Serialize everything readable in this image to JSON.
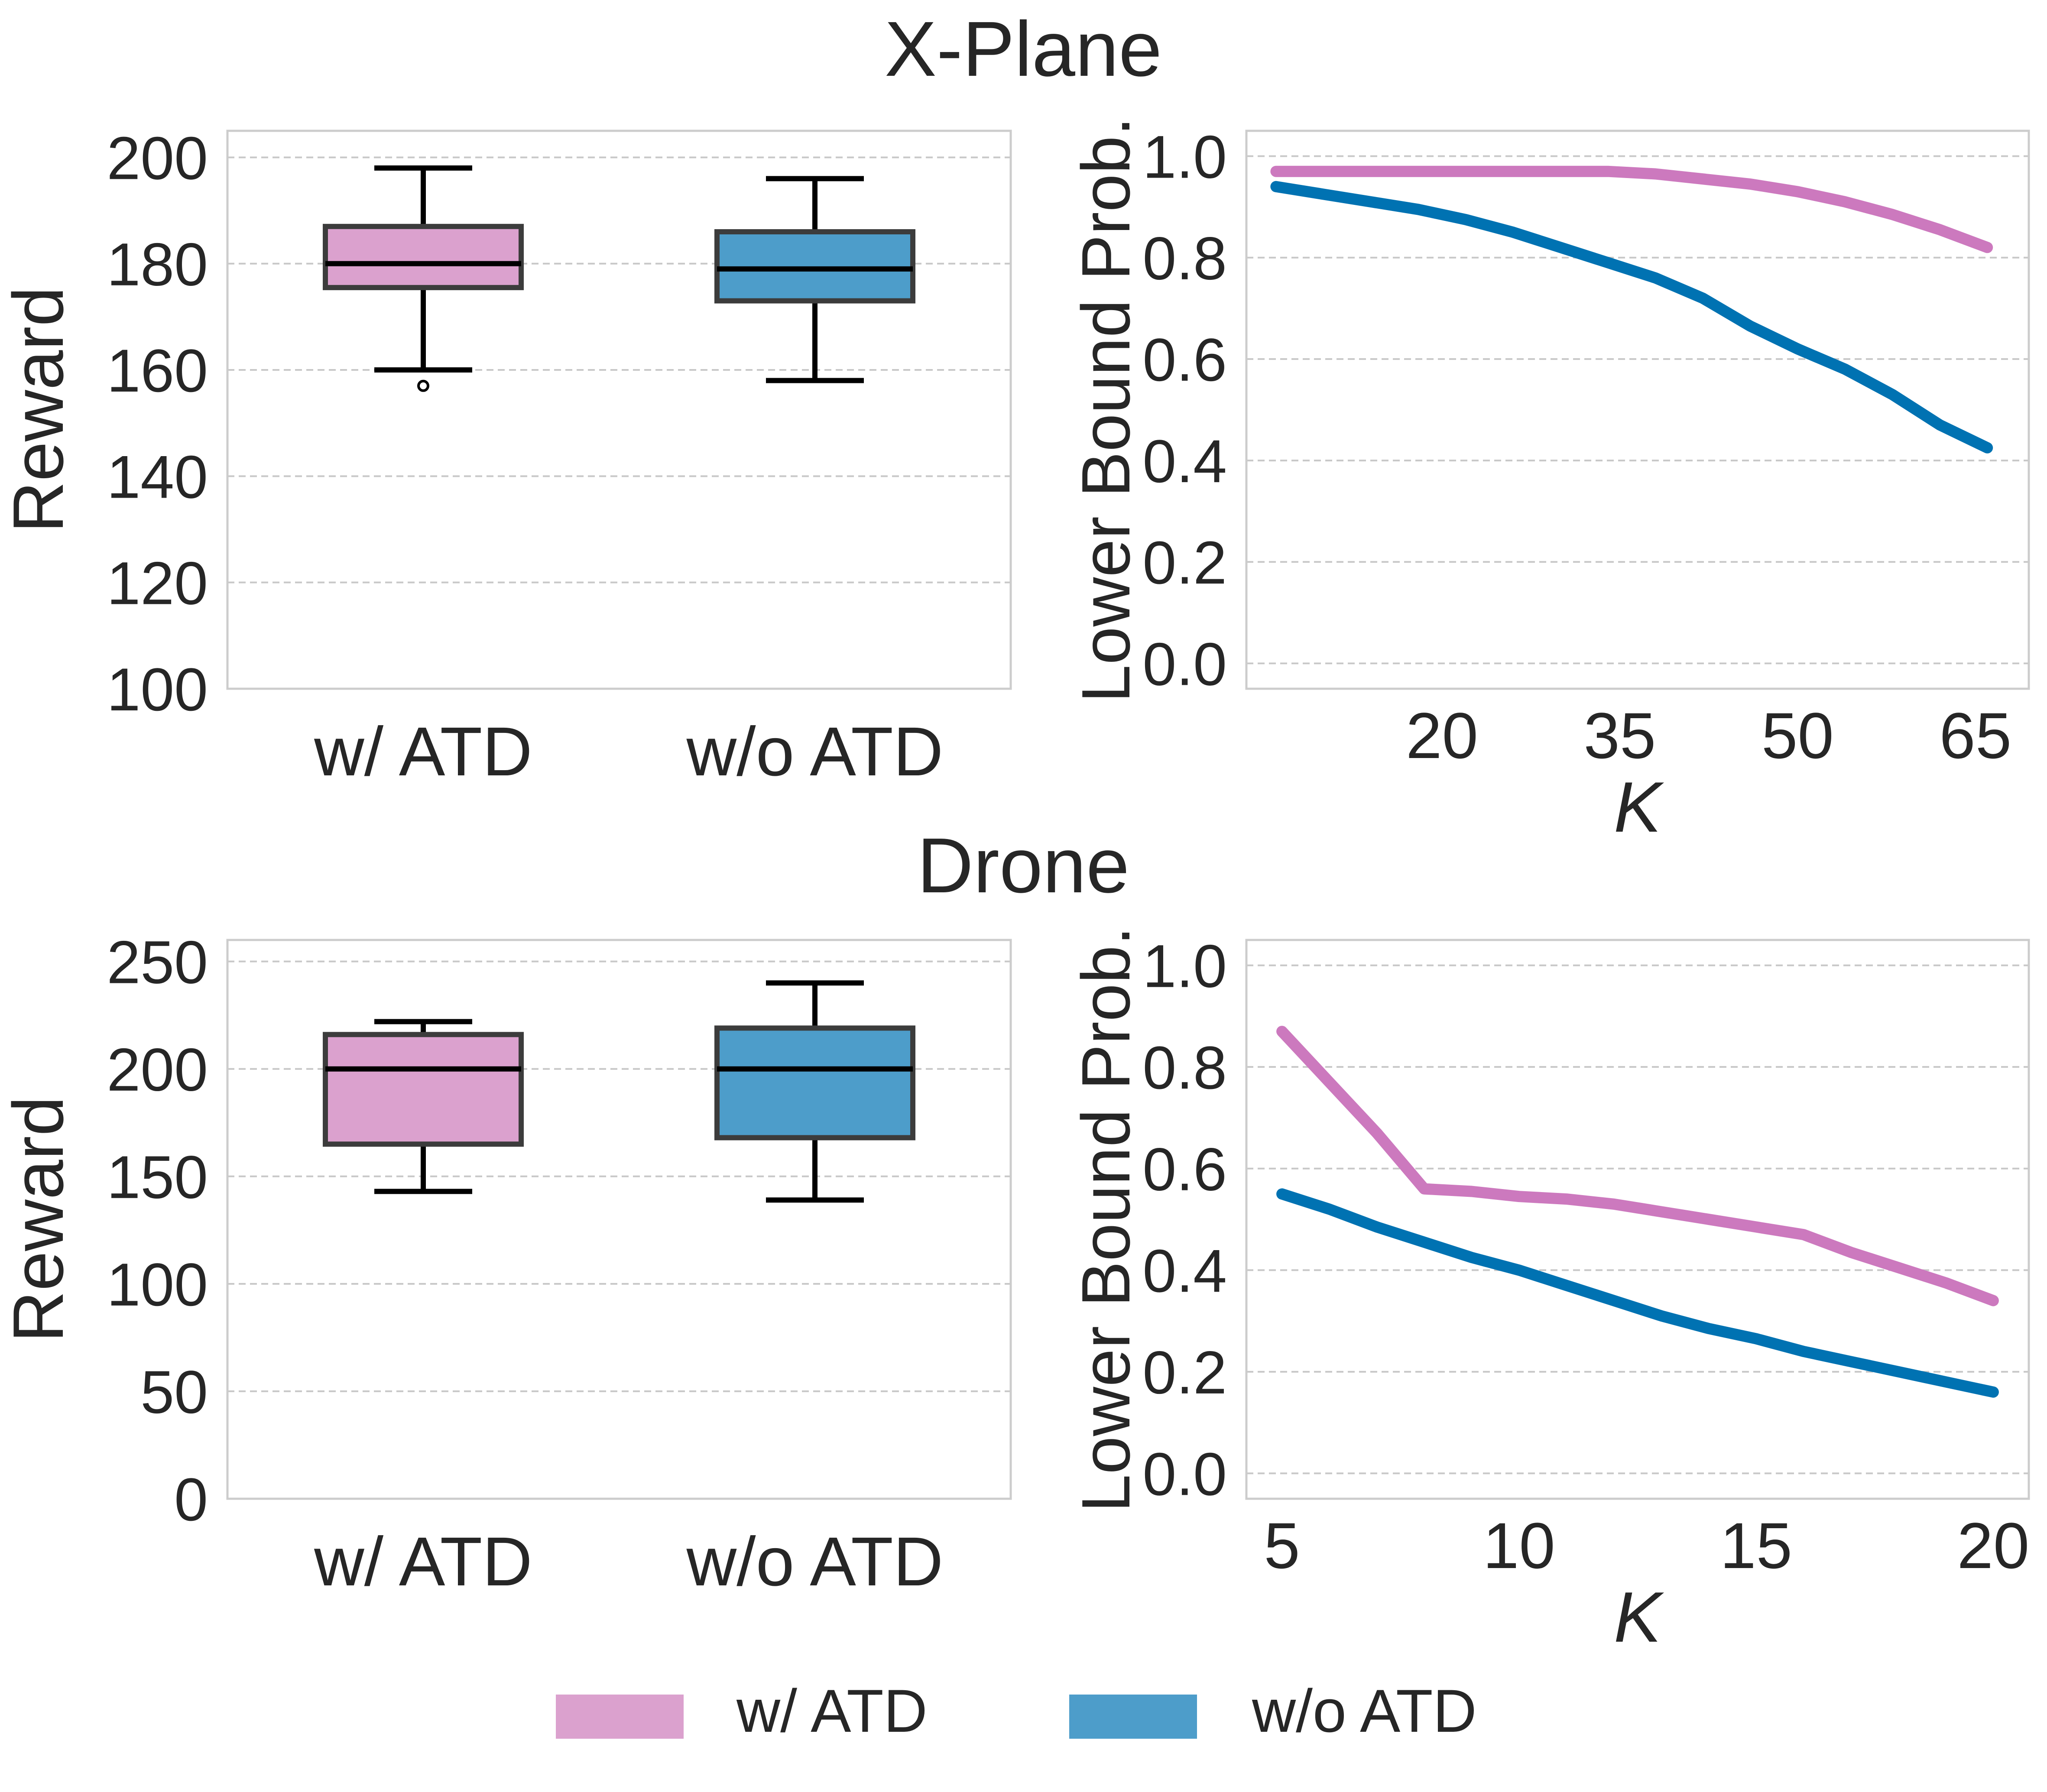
{
  "colors": {
    "w_atd_box": "#dba1ce",
    "wo_atd_box": "#4d9dca",
    "w_atd_line": "#cc79be",
    "wo_atd_line": "#0072b2",
    "grid": "#c8c8c8",
    "frame": "#cccccc",
    "text": "#262626"
  },
  "legend": {
    "items": [
      {
        "label": "w/ ATD",
        "color": "#dba1ce"
      },
      {
        "label": "w/o ATD",
        "color": "#4d9dca"
      }
    ]
  },
  "chart_data": [
    {
      "id": "xplane-reward",
      "type": "box",
      "title": "X-Plane",
      "xlabel": "",
      "ylabel": "Reward",
      "ylim": [
        100,
        205
      ],
      "yticks": [
        100,
        120,
        140,
        160,
        180,
        200
      ],
      "categories": [
        "w/ ATD",
        "w/o ATD"
      ],
      "boxes": [
        {
          "name": "w/ ATD",
          "whisker_low": 160,
          "q1": 175.5,
          "median": 180,
          "q3": 187,
          "whisker_high": 198,
          "outliers": [
            157
          ]
        },
        {
          "name": "w/o ATD",
          "whisker_low": 158,
          "q1": 173,
          "median": 179,
          "q3": 186,
          "whisker_high": 196,
          "outliers": []
        }
      ]
    },
    {
      "id": "xplane-prob",
      "type": "line",
      "xlabel": "K",
      "ylabel": "Lower Bound Prob.",
      "xlim": [
        3.5,
        69.5
      ],
      "ylim": [
        -0.05,
        1.05
      ],
      "xticks": [
        20,
        35,
        50,
        65
      ],
      "yticks": [
        0.0,
        0.2,
        0.4,
        0.6,
        0.8,
        1.0
      ],
      "series": [
        {
          "name": "w/ ATD",
          "x": [
            6,
            10,
            14,
            18,
            22,
            26,
            30,
            34,
            38,
            42,
            46,
            50,
            54,
            58,
            62,
            66
          ],
          "y": [
            0.97,
            0.97,
            0.97,
            0.97,
            0.97,
            0.97,
            0.97,
            0.97,
            0.965,
            0.955,
            0.945,
            0.93,
            0.91,
            0.885,
            0.855,
            0.82
          ]
        },
        {
          "name": "w/o ATD",
          "x": [
            6,
            10,
            14,
            18,
            22,
            26,
            30,
            34,
            38,
            42,
            46,
            50,
            54,
            58,
            62,
            66
          ],
          "y": [
            0.94,
            0.925,
            0.91,
            0.895,
            0.875,
            0.85,
            0.82,
            0.79,
            0.76,
            0.72,
            0.665,
            0.62,
            0.58,
            0.53,
            0.47,
            0.425
          ]
        }
      ]
    },
    {
      "id": "drone-reward",
      "type": "box",
      "title": "Drone",
      "xlabel": "",
      "ylabel": "Reward",
      "ylim": [
        0,
        260
      ],
      "yticks": [
        0,
        50,
        100,
        150,
        200,
        250
      ],
      "categories": [
        "w/ ATD",
        "w/o ATD"
      ],
      "boxes": [
        {
          "name": "w/ ATD",
          "whisker_low": 143,
          "q1": 165,
          "median": 200,
          "q3": 216,
          "whisker_high": 222,
          "outliers": []
        },
        {
          "name": "w/o ATD",
          "whisker_low": 139,
          "q1": 168,
          "median": 200,
          "q3": 219,
          "whisker_high": 240,
          "outliers": []
        }
      ]
    },
    {
      "id": "drone-prob",
      "type": "line",
      "xlabel": "K",
      "ylabel": "Lower Bound Prob.",
      "xlim": [
        4.25,
        20.75
      ],
      "ylim": [
        -0.05,
        1.05
      ],
      "xticks": [
        5,
        10,
        15,
        20
      ],
      "yticks": [
        0.0,
        0.2,
        0.4,
        0.6,
        0.8,
        1.0
      ],
      "series": [
        {
          "name": "w/ ATD",
          "x": [
            5,
            6,
            7,
            8,
            9,
            10,
            11,
            12,
            13,
            14,
            15,
            16,
            17,
            18,
            19,
            20
          ],
          "y": [
            0.87,
            0.77,
            0.67,
            0.56,
            0.555,
            0.545,
            0.54,
            0.53,
            0.515,
            0.5,
            0.485,
            0.47,
            0.435,
            0.405,
            0.375,
            0.34
          ]
        },
        {
          "name": "w/o ATD",
          "x": [
            5,
            6,
            7,
            8,
            9,
            10,
            11,
            12,
            13,
            14,
            15,
            16,
            17,
            18,
            19,
            20
          ],
          "y": [
            0.55,
            0.52,
            0.485,
            0.455,
            0.425,
            0.4,
            0.37,
            0.34,
            0.31,
            0.285,
            0.265,
            0.24,
            0.22,
            0.2,
            0.18,
            0.16
          ]
        }
      ]
    }
  ]
}
